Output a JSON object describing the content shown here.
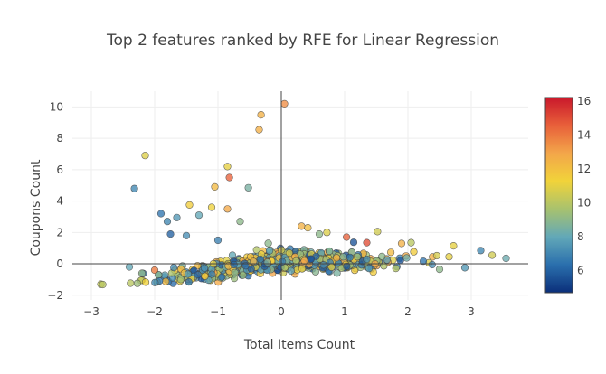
{
  "chart_data": {
    "type": "scatter",
    "title": "Top 2 features ranked by RFE for Linear Regression",
    "xlabel": "Total Items Count",
    "ylabel": "Coupons Count",
    "xlim": [
      -3.3,
      3.9
    ],
    "ylim": [
      -2.3,
      11.0
    ],
    "x_ticks": [
      -3,
      -2,
      -1,
      0,
      1,
      2,
      3
    ],
    "y_ticks": [
      -2,
      0,
      2,
      4,
      6,
      8,
      10
    ],
    "x_tick_labels": [
      "−3",
      "−2",
      "−1",
      "0",
      "1",
      "2",
      "3"
    ],
    "y_tick_labels": [
      "−2",
      "0",
      "2",
      "4",
      "6",
      "8",
      "10"
    ],
    "grid": true,
    "colorbar": {
      "range": [
        4.7,
        16.2
      ],
      "ticks": [
        6,
        8,
        10,
        12,
        14,
        16
      ],
      "tick_labels": [
        "6",
        "8",
        "10",
        "12",
        "14",
        "16"
      ],
      "colorscale": [
        "#0b2f7a",
        "#2a6fad",
        "#62a8b8",
        "#a8c26e",
        "#f1d33a",
        "#f3a64a",
        "#e8603a",
        "#c9182b"
      ]
    },
    "outlier_points": [
      {
        "x": 0.05,
        "y": 10.2,
        "c": 13.5
      },
      {
        "x": -0.32,
        "y": 9.5,
        "c": 12.5
      },
      {
        "x": -0.35,
        "y": 8.55,
        "c": 12.6
      },
      {
        "x": -2.15,
        "y": 6.9,
        "c": 10.8
      },
      {
        "x": -0.85,
        "y": 6.2,
        "c": 11.0
      },
      {
        "x": -0.82,
        "y": 5.5,
        "c": 14.5
      },
      {
        "x": -1.05,
        "y": 4.9,
        "c": 12.2
      },
      {
        "x": -0.52,
        "y": 4.85,
        "c": 8.5
      },
      {
        "x": -2.32,
        "y": 4.8,
        "c": 7.0
      },
      {
        "x": -1.45,
        "y": 3.75,
        "c": 11.5
      },
      {
        "x": -1.1,
        "y": 3.6,
        "c": 11.2
      },
      {
        "x": -0.85,
        "y": 3.5,
        "c": 12.8
      },
      {
        "x": -1.9,
        "y": 3.2,
        "c": 6.5
      },
      {
        "x": -1.65,
        "y": 2.95,
        "c": 7.5
      },
      {
        "x": -1.3,
        "y": 3.1,
        "c": 8.0
      },
      {
        "x": -1.8,
        "y": 2.7,
        "c": 7.0
      },
      {
        "x": -0.65,
        "y": 2.7,
        "c": 9.0
      },
      {
        "x": -1.75,
        "y": 1.9,
        "c": 6.0
      },
      {
        "x": -1.5,
        "y": 1.8,
        "c": 7.2
      },
      {
        "x": -1.0,
        "y": 1.5,
        "c": 6.8
      },
      {
        "x": 0.32,
        "y": 2.4,
        "c": 12.5
      },
      {
        "x": 0.42,
        "y": 2.3,
        "c": 12.0
      },
      {
        "x": 0.72,
        "y": 2.0,
        "c": 10.8
      },
      {
        "x": 0.6,
        "y": 1.9,
        "c": 9.0
      },
      {
        "x": 1.03,
        "y": 1.7,
        "c": 14.5
      },
      {
        "x": 1.52,
        "y": 2.05,
        "c": 10.5
      },
      {
        "x": 1.35,
        "y": 1.35,
        "c": 15.0
      },
      {
        "x": 1.9,
        "y": 1.3,
        "c": 12.5
      },
      {
        "x": 2.05,
        "y": 1.35,
        "c": 10.0
      },
      {
        "x": 2.72,
        "y": 1.15,
        "c": 11.0
      },
      {
        "x": 3.15,
        "y": 0.85,
        "c": 7.0
      },
      {
        "x": 3.33,
        "y": 0.55,
        "c": 10.5
      },
      {
        "x": 3.55,
        "y": 0.35,
        "c": 8.2
      },
      {
        "x": -2.85,
        "y": -1.3,
        "c": 10.3
      },
      {
        "x": -2.82,
        "y": -1.32,
        "c": 10.0
      },
      {
        "x": -2.4,
        "y": -0.2,
        "c": 8.0
      },
      {
        "x": -2.2,
        "y": -0.6,
        "c": 9.0
      },
      {
        "x": -2.0,
        "y": -0.4,
        "c": 14.0
      },
      {
        "x": 2.5,
        "y": -0.35,
        "c": 9.0
      },
      {
        "x": 2.9,
        "y": -0.25,
        "c": 7.5
      },
      {
        "x": 2.65,
        "y": 0.45,
        "c": 11.0
      }
    ],
    "cluster": {
      "description": "dense cloud of several hundred points",
      "x_range": [
        -2.4,
        2.7
      ],
      "y_center_at_x_minus2": -1.0,
      "y_center_at_x_0": 0.2,
      "y_center_at_x_2": 0.2,
      "spread": 0.45,
      "color_range": [
        5.5,
        13.0
      ]
    }
  }
}
